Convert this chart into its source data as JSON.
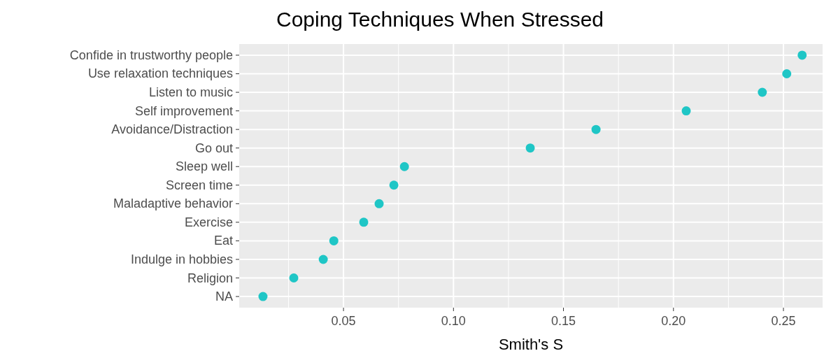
{
  "chart_data": {
    "type": "scatter",
    "title": "Coping Techniques When Stressed",
    "xlabel": "Smith's S",
    "orientation": "horizontal",
    "categories": [
      "Confide in trustworthy people",
      "Use relaxation techniques",
      "Listen to music",
      "Self improvement",
      "Avoidance/Distraction",
      "Go out",
      "Sleep well",
      "Screen time",
      "Maladaptive behavior",
      "Exercise",
      "Eat",
      "Indulge in hobbies",
      "Religion",
      "NA"
    ],
    "series": [
      {
        "color": "#1fc6c6",
        "values": [
          0.2585,
          0.2515,
          0.2404,
          0.2058,
          0.1648,
          0.1349,
          0.0777,
          0.0729,
          0.0662,
          0.0592,
          0.0456,
          0.0408,
          0.0274,
          0.0134
        ]
      }
    ],
    "xlim": [
      0.0026,
      0.2678
    ],
    "xticks": [
      {
        "value": 0.05,
        "label": "0.05"
      },
      {
        "value": 0.1,
        "label": "0.10"
      },
      {
        "value": 0.15,
        "label": "0.15"
      },
      {
        "value": 0.2,
        "label": "0.20"
      },
      {
        "value": 0.25,
        "label": "0.25"
      }
    ],
    "grid": true,
    "marker": "circle"
  }
}
